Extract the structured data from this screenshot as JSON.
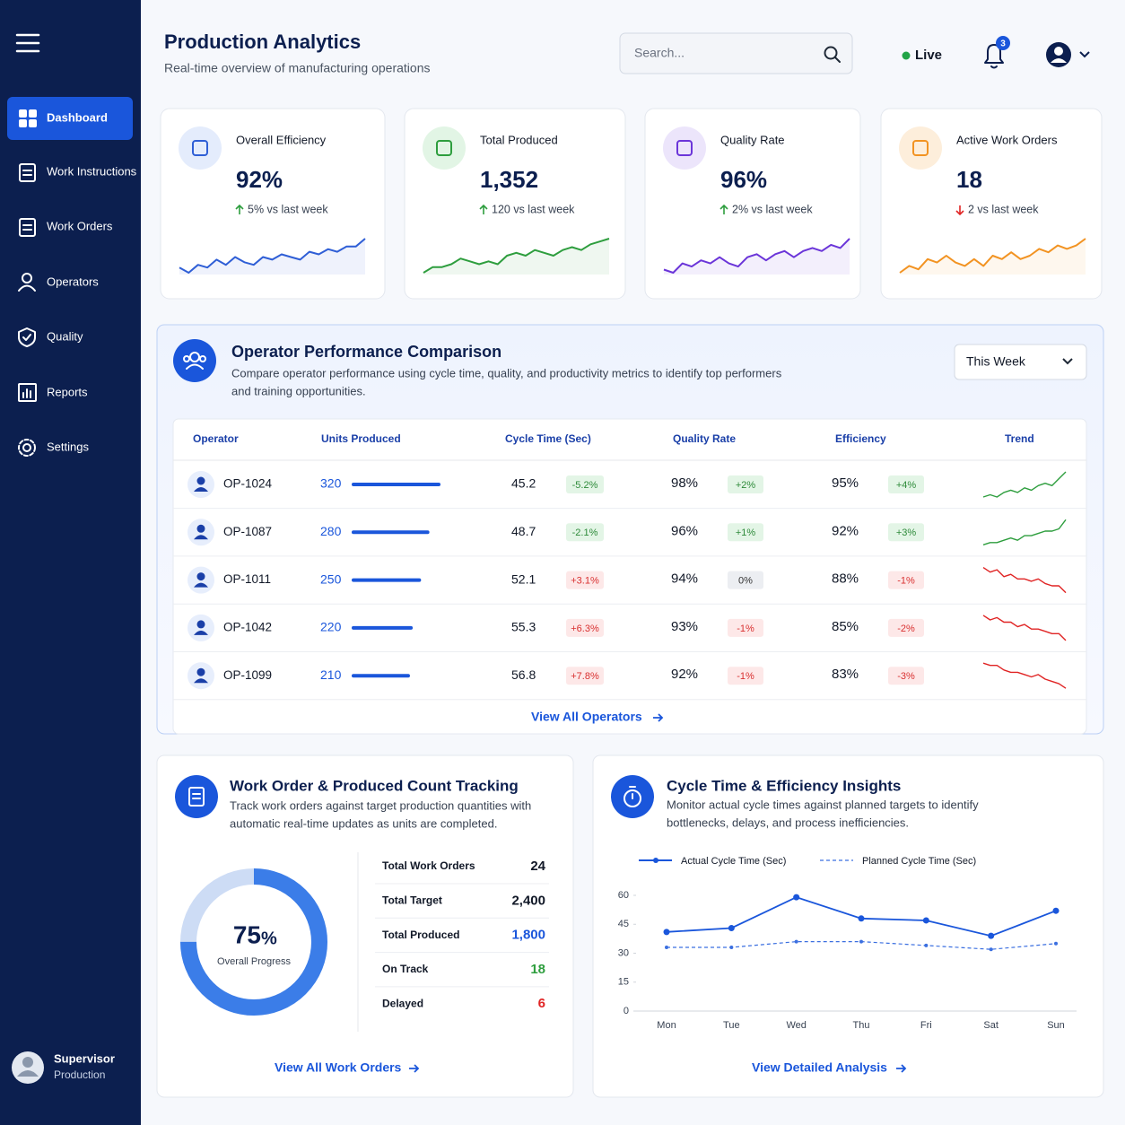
{
  "sidebar": {
    "nav": [
      "Dashboard",
      "Work Instructions",
      "Work Orders",
      "Operators",
      "Quality",
      "Reports",
      "Settings"
    ],
    "active": 0,
    "user": {
      "name": "Supervisor",
      "role": "Production"
    }
  },
  "header": {
    "title": "Production Analytics",
    "subtitle": "Real-time overview of manufacturing operations",
    "search_placeholder": "Search...",
    "status": "Live",
    "notifications": 3
  },
  "kpis": [
    {
      "label": "Overall Efficiency",
      "value": "92%",
      "delta": "5% vs last week",
      "direction": "up",
      "color": "#2f5fd6",
      "trend": [
        4,
        2,
        5,
        4,
        7,
        5,
        8,
        6,
        5,
        8,
        7,
        9,
        8,
        7,
        10,
        9,
        11,
        10,
        12,
        12,
        15
      ]
    },
    {
      "label": "Total Produced",
      "value": "1,352",
      "delta": "120 vs last week",
      "direction": "up",
      "color": "#2e9e3e",
      "trend": [
        3,
        5,
        5,
        6,
        8,
        7,
        6,
        7,
        6,
        9,
        10,
        9,
        11,
        10,
        9,
        11,
        12,
        11,
        13,
        14,
        15
      ]
    },
    {
      "label": "Quality Rate",
      "value": "96%",
      "delta": "2% vs last week",
      "direction": "up",
      "color": "#6b35d9",
      "trend": [
        4,
        3,
        6,
        5,
        7,
        6,
        8,
        6,
        5,
        8,
        9,
        7,
        9,
        10,
        8,
        10,
        11,
        10,
        12,
        11,
        14
      ]
    },
    {
      "label": "Active Work Orders",
      "value": "18",
      "delta": "2 vs last week",
      "direction": "down",
      "color": "#f29322",
      "trend": [
        4,
        6,
        5,
        8,
        7,
        9,
        7,
        6,
        8,
        6,
        9,
        8,
        10,
        8,
        9,
        11,
        10,
        12,
        11,
        12,
        14
      ]
    }
  ],
  "operators": {
    "title": "Operator Performance Comparison",
    "description": [
      "Compare operator performance using cycle time, quality, and productivity metrics to identify top performers",
      "and training opportunities."
    ],
    "period": "This Week",
    "columns": [
      "Operator",
      "Units Produced",
      "Cycle Time (Sec)",
      "Quality Rate",
      "Efficiency",
      "Trend"
    ],
    "rows": [
      {
        "operator": "OP-1024",
        "units": 320,
        "cycle": "45.2",
        "cycle_change": "-5.2%",
        "cycle_tone": "good",
        "quality": "98%",
        "quality_change": "+2%",
        "quality_tone": "good",
        "efficiency": "95%",
        "efficiency_change": "+4%",
        "efficiency_tone": "good",
        "trend_color": "#2e9e3e",
        "trend": [
          2,
          3,
          2,
          4,
          5,
          4,
          6,
          5,
          7,
          8,
          7,
          10,
          13
        ]
      },
      {
        "operator": "OP-1087",
        "units": 280,
        "cycle": "48.7",
        "cycle_change": "-2.1%",
        "cycle_tone": "good",
        "quality": "96%",
        "quality_change": "+1%",
        "quality_tone": "good",
        "efficiency": "92%",
        "efficiency_change": "+3%",
        "efficiency_tone": "good",
        "trend_color": "#2e9e3e",
        "trend": [
          2,
          3,
          3,
          4,
          5,
          4,
          6,
          6,
          7,
          8,
          8,
          9,
          13
        ]
      },
      {
        "operator": "OP-1011",
        "units": 250,
        "cycle": "52.1",
        "cycle_change": "+3.1%",
        "cycle_tone": "bad",
        "quality": "94%",
        "quality_change": "0%",
        "quality_tone": "neutral",
        "efficiency": "88%",
        "efficiency_change": "-1%",
        "efficiency_tone": "bad",
        "trend_color": "#e02424",
        "trend": [
          13,
          11,
          12,
          9,
          10,
          8,
          8,
          7,
          8,
          6,
          5,
          5,
          2
        ]
      },
      {
        "operator": "OP-1042",
        "units": 220,
        "cycle": "55.3",
        "cycle_change": "+6.3%",
        "cycle_tone": "bad",
        "quality": "93%",
        "quality_change": "-1%",
        "quality_tone": "bad",
        "efficiency": "85%",
        "efficiency_change": "-2%",
        "efficiency_tone": "bad",
        "trend_color": "#e02424",
        "trend": [
          13,
          11,
          12,
          10,
          10,
          8,
          9,
          7,
          7,
          6,
          5,
          5,
          2
        ]
      },
      {
        "operator": "OP-1099",
        "units": 210,
        "cycle": "56.8",
        "cycle_change": "+7.8%",
        "cycle_tone": "bad",
        "quality": "92%",
        "quality_change": "-1%",
        "quality_tone": "bad",
        "efficiency": "83%",
        "efficiency_change": "-3%",
        "efficiency_tone": "bad",
        "trend_color": "#e02424",
        "trend": [
          13,
          12,
          12,
          10,
          9,
          9,
          8,
          7,
          8,
          6,
          5,
          4,
          2
        ]
      }
    ],
    "link": "View All Operators"
  },
  "work_orders": {
    "title": "Work Order & Produced Count Tracking",
    "description": [
      "Track work orders against target production quantities with",
      "automatic real-time updates as units are completed."
    ],
    "progress_value": 75,
    "progress_unit": "%",
    "progress_label": "Overall Progress",
    "summary": [
      {
        "label": "Total Work Orders",
        "value": "24",
        "color": "#111827"
      },
      {
        "label": "Total Target",
        "value": "2,400",
        "color": "#111827"
      },
      {
        "label": "Total Produced",
        "value": "1,800",
        "color": "#1a56db"
      },
      {
        "label": "On Track",
        "value": "18",
        "color": "#2e9e3e"
      },
      {
        "label": "Delayed",
        "value": "6",
        "color": "#e02424"
      }
    ],
    "link": "View All Work Orders"
  },
  "cycle_time": {
    "title": "Cycle Time & Efficiency Insights",
    "description": [
      "Monitor actual cycle times against planned targets to identify",
      "bottlenecks, delays, and process inefficiencies."
    ],
    "chart": {
      "type": "line",
      "categories": [
        "Mon",
        "Tue",
        "Wed",
        "Thu",
        "Fri",
        "Sat",
        "Sun"
      ],
      "ylim": [
        0,
        60
      ],
      "yticks": [
        0,
        15,
        30,
        45,
        60
      ],
      "series": [
        {
          "name": "Actual Cycle Time (Sec)",
          "color": "#1a56db",
          "dashed": false,
          "values": [
            41,
            43,
            59,
            48,
            47,
            39,
            52
          ]
        },
        {
          "name": "Planned Cycle Time (Sec)",
          "color": "#3b6fe0",
          "dashed": true,
          "values": [
            33,
            33,
            36,
            36,
            34,
            32,
            35
          ]
        }
      ]
    },
    "link": "View Detailed Analysis"
  }
}
